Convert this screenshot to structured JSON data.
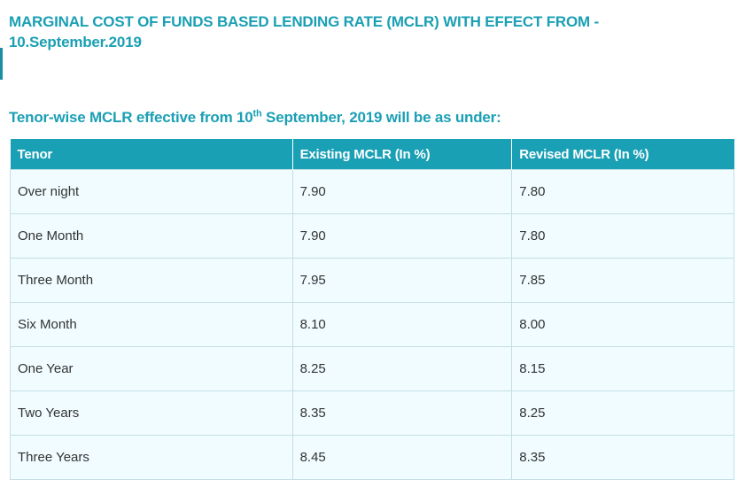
{
  "heading": {
    "line1": "MARGINAL COST OF FUNDS BASED LENDING RATE (MCLR) WITH EFFECT FROM -",
    "line2": "10.September.2019"
  },
  "subheading": {
    "prefix": "Tenor-wise MCLR effective from 10",
    "ordinal": "th",
    "suffix": " September, 2019 will be as under:"
  },
  "table": {
    "headers": [
      "Tenor",
      "Existing MCLR (In %)",
      "Revised MCLR (In %)"
    ],
    "rows": [
      {
        "tenor": "Over night",
        "existing": "7.90",
        "revised": "7.80"
      },
      {
        "tenor": "One Month",
        "existing": "7.90",
        "revised": "7.80"
      },
      {
        "tenor": "Three Month",
        "existing": "7.95",
        "revised": "7.85"
      },
      {
        "tenor": "Six Month",
        "existing": "8.10",
        "revised": "8.00"
      },
      {
        "tenor": "One Year",
        "existing": "8.25",
        "revised": "8.15"
      },
      {
        "tenor": "Two Years",
        "existing": "8.35",
        "revised": "8.25"
      },
      {
        "tenor": "Three Years",
        "existing": "8.45",
        "revised": "8.35"
      }
    ]
  },
  "colors": {
    "accent": "#1a9fb4",
    "header_bg": "#1aa0b5",
    "row_bg": "#f0fcff",
    "border": "#c4dfe5"
  }
}
